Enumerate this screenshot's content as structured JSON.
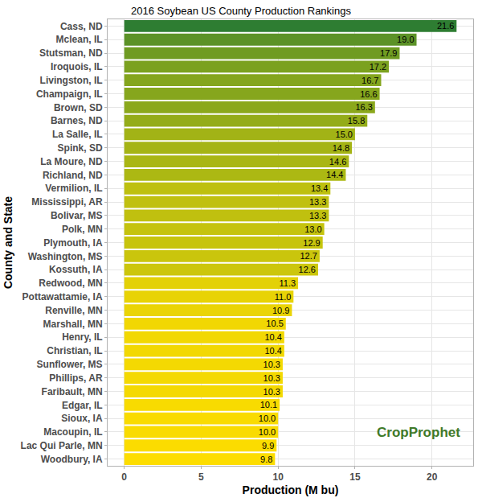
{
  "chart_data": {
    "type": "bar",
    "orientation": "horizontal",
    "title": "2016 Soybean US County Production Rankings",
    "xlabel": "Production (M bu)",
    "ylabel": "County and State",
    "annotation": "CropProphet",
    "categories": [
      "Cass, ND",
      "Mclean, IL",
      "Stutsman, ND",
      "Iroquois, IL",
      "Livingston, IL",
      "Champaign, IL",
      "Brown, SD",
      "Barnes, ND",
      "La Salle, IL",
      "Spink, SD",
      "La Moure, ND",
      "Richland, ND",
      "Vermilion, IL",
      "Mississippi, AR",
      "Bolivar, MS",
      "Polk, MN",
      "Plymouth, IA",
      "Washington, MS",
      "Kossuth, IA",
      "Redwood, MN",
      "Pottawattamie, IA",
      "Renville, MN",
      "Marshall, MN",
      "Henry, IL",
      "Christian, IL",
      "Sunflower, MS",
      "Phillips, AR",
      "Faribault, MN",
      "Edgar, IL",
      "Sioux, IA",
      "Macoupin, IL",
      "Lac Qui Parle, MN",
      "Woodbury, IA"
    ],
    "values": [
      21.6,
      19.0,
      17.9,
      17.2,
      16.7,
      16.6,
      16.3,
      15.8,
      15.0,
      14.8,
      14.6,
      14.4,
      13.4,
      13.3,
      13.3,
      13.0,
      12.9,
      12.7,
      12.6,
      11.3,
      11.0,
      10.9,
      10.5,
      10.4,
      10.4,
      10.3,
      10.3,
      10.3,
      10.1,
      10.0,
      10.0,
      9.9,
      9.8
    ],
    "value_labels": [
      "21.6",
      "19.0",
      "17.9",
      "17.2",
      "16.7",
      "16.6",
      "16.3",
      "15.8",
      "15.0",
      "14.8",
      "14.6",
      "14.4",
      "13.4",
      "13.3",
      "13.3",
      "13.0",
      "12.9",
      "12.7",
      "12.6",
      "11.3",
      "11.0",
      "10.9",
      "10.5",
      "10.4",
      "10.4",
      "10.3",
      "10.3",
      "10.3",
      "10.1",
      "10.0",
      "10.0",
      "9.9",
      "9.8"
    ],
    "colors": [
      "#2E7D32",
      "#5C9227",
      "#6F9B22",
      "#7BA11F",
      "#84A51D",
      "#86A61D",
      "#8BA81C",
      "#94AC19",
      "#A2B316",
      "#A5B415",
      "#A9B614",
      "#ACB813",
      "#BEC00F",
      "#C0C00F",
      "#C0C00F",
      "#C5C30E",
      "#C7C40D",
      "#CAC50C",
      "#CCC60C",
      "#E3D106",
      "#E8D305",
      "#EAD405",
      "#F1D703",
      "#F2D803",
      "#F2D803",
      "#F4D902",
      "#F4D902",
      "#F4D902",
      "#F8DB01",
      "#F9DB01",
      "#F9DB01",
      "#FBDC00",
      "#FDDD00"
    ],
    "xlim": [
      -1.08,
      22.68
    ],
    "xticks": [
      0,
      5,
      10,
      15,
      20
    ],
    "grid": true,
    "data_labels": true
  }
}
